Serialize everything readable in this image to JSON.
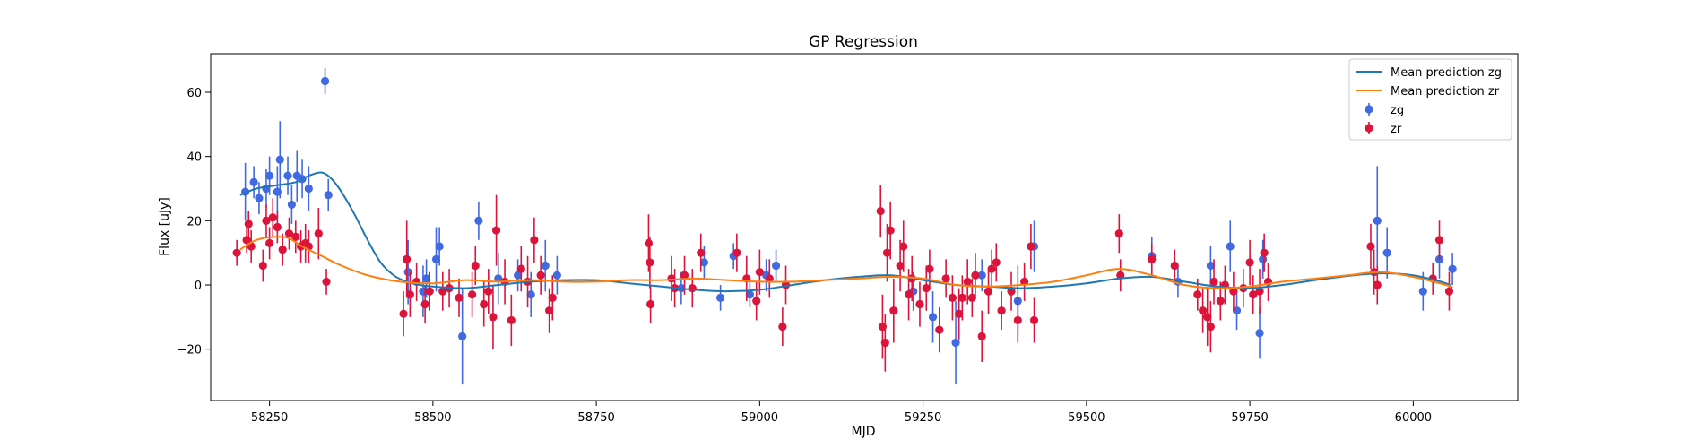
{
  "chart_data": {
    "type": "scatter",
    "title": "GP Regression",
    "xlabel": "MJD",
    "ylabel": "Flux [uJy]",
    "xlim": [
      58160,
      60160
    ],
    "ylim": [
      -36,
      72
    ],
    "xticks": [
      58250,
      58500,
      58750,
      59000,
      59250,
      59500,
      59750,
      60000
    ],
    "yticks": [
      -20,
      0,
      20,
      40,
      60
    ],
    "grid": false,
    "legend_position": "top-right",
    "colors": {
      "zg_line": "#1f77b4",
      "zr_line": "#ff7f0e",
      "zg_points": "#4169e1",
      "zr_points": "#dc143c"
    },
    "legend": [
      {
        "label": "Mean prediction zg",
        "kind": "line",
        "color": "#1f77b4"
      },
      {
        "label": "Mean prediction zr",
        "kind": "line",
        "color": "#ff7f0e"
      },
      {
        "label": "zg",
        "kind": "errorbar",
        "color": "#4169e1"
      },
      {
        "label": "zr",
        "kind": "errorbar",
        "color": "#dc143c"
      }
    ],
    "lines": [
      {
        "name": "Mean prediction zg",
        "color": "#1f77b4",
        "x": [
          58205,
          58230,
          58260,
          58290,
          58310,
          58330,
          58345,
          58360,
          58380,
          58400,
          58420,
          58440,
          58460,
          58480,
          58500,
          58550,
          58600,
          58650,
          58700,
          58750,
          58800,
          58850,
          58900,
          58950,
          59000,
          59050,
          59100,
          59150,
          59200,
          59250,
          59300,
          59350,
          59400,
          59450,
          59500,
          59550,
          59600,
          59650,
          59700,
          59750,
          59800,
          59850,
          59900,
          59950,
          60000,
          60050,
          60060
        ],
        "y": [
          28,
          30,
          31,
          32,
          34,
          35,
          33,
          29,
          22,
          14,
          7,
          3,
          1,
          0,
          -0.5,
          -1,
          0,
          1,
          1.5,
          1.5,
          0.5,
          -0.5,
          -1.5,
          -2,
          -1.5,
          0,
          1.5,
          2.5,
          3,
          1.5,
          0,
          -0.5,
          -1,
          -0.5,
          0.5,
          2,
          2.5,
          1,
          -0.5,
          -1,
          0,
          1.5,
          2.8,
          3.6,
          3,
          0.5,
          -1
        ]
      },
      {
        "name": "Mean prediction zr",
        "color": "#ff7f0e",
        "x": [
          58205,
          58230,
          58260,
          58280,
          58300,
          58330,
          58360,
          58400,
          58450,
          58500,
          58550,
          58600,
          58650,
          58700,
          58750,
          58800,
          58850,
          58900,
          58950,
          59000,
          59050,
          59100,
          59150,
          59200,
          59250,
          59300,
          59350,
          59400,
          59450,
          59500,
          59550,
          59600,
          59650,
          59700,
          59750,
          59800,
          59850,
          59900,
          59950,
          60000,
          60050,
          60060
        ],
        "y": [
          11,
          14,
          15,
          14.5,
          12,
          9,
          6,
          3,
          1,
          0.5,
          1.5,
          1,
          1.5,
          1,
          1,
          1.5,
          1.5,
          2,
          1.5,
          1,
          1,
          1.5,
          2,
          2.5,
          2,
          0,
          -0.5,
          0,
          1,
          3,
          5,
          3,
          0,
          -1,
          -0.5,
          1,
          2,
          3,
          4,
          2.5,
          0,
          -0.5
        ]
      }
    ],
    "series": [
      {
        "name": "zg",
        "color": "#4169e1",
        "points": [
          {
            "x": 58213,
            "y": 29,
            "err": 9
          },
          {
            "x": 58226,
            "y": 32,
            "err": 5
          },
          {
            "x": 58234,
            "y": 27,
            "err": 5
          },
          {
            "x": 58245,
            "y": 30,
            "err": 6
          },
          {
            "x": 58250,
            "y": 34,
            "err": 6
          },
          {
            "x": 58262,
            "y": 29,
            "err": 8
          },
          {
            "x": 58266,
            "y": 39,
            "err": 12
          },
          {
            "x": 58278,
            "y": 34,
            "err": 6
          },
          {
            "x": 58284,
            "y": 25,
            "err": 6
          },
          {
            "x": 58292,
            "y": 34,
            "err": 8
          },
          {
            "x": 58300,
            "y": 33,
            "err": 6
          },
          {
            "x": 58310,
            "y": 30,
            "err": 7
          },
          {
            "x": 58335,
            "y": 63.5,
            "err": 4
          },
          {
            "x": 58340,
            "y": 28,
            "err": 5
          },
          {
            "x": 58462,
            "y": 4,
            "err": 10
          },
          {
            "x": 58485,
            "y": -2,
            "err": 8
          },
          {
            "x": 58490,
            "y": 2,
            "err": 6
          },
          {
            "x": 58505,
            "y": 8,
            "err": 10
          },
          {
            "x": 58510,
            "y": 12,
            "err": 6
          },
          {
            "x": 58545,
            "y": -16,
            "err": 15
          },
          {
            "x": 58570,
            "y": 20,
            "err": 6
          },
          {
            "x": 58600,
            "y": 2,
            "err": 8
          },
          {
            "x": 58630,
            "y": 3,
            "err": 5
          },
          {
            "x": 58650,
            "y": -3,
            "err": 7
          },
          {
            "x": 58672,
            "y": 6,
            "err": 8
          },
          {
            "x": 58690,
            "y": 3,
            "err": 6
          },
          {
            "x": 58880,
            "y": -1,
            "err": 5
          },
          {
            "x": 58915,
            "y": 7,
            "err": 5
          },
          {
            "x": 58940,
            "y": -4,
            "err": 4
          },
          {
            "x": 58960,
            "y": 9,
            "err": 4
          },
          {
            "x": 58985,
            "y": -3,
            "err": 4
          },
          {
            "x": 59010,
            "y": 3,
            "err": 5
          },
          {
            "x": 59025,
            "y": 6,
            "err": 5
          },
          {
            "x": 59235,
            "y": -2,
            "err": 6
          },
          {
            "x": 59265,
            "y": -10,
            "err": 8
          },
          {
            "x": 59300,
            "y": -18,
            "err": 13
          },
          {
            "x": 59340,
            "y": 3,
            "err": 5
          },
          {
            "x": 59395,
            "y": -5,
            "err": 11
          },
          {
            "x": 59420,
            "y": 12,
            "err": 8
          },
          {
            "x": 59600,
            "y": 9,
            "err": 6
          },
          {
            "x": 59640,
            "y": 1,
            "err": 5
          },
          {
            "x": 59690,
            "y": 6,
            "err": 6
          },
          {
            "x": 59720,
            "y": 12,
            "err": 8
          },
          {
            "x": 59730,
            "y": -8,
            "err": 6
          },
          {
            "x": 59765,
            "y": -15,
            "err": 8
          },
          {
            "x": 59770,
            "y": 8,
            "err": 6
          },
          {
            "x": 59945,
            "y": 20,
            "err": 17
          },
          {
            "x": 59960,
            "y": 10,
            "err": 8
          },
          {
            "x": 60015,
            "y": -2,
            "err": 6
          },
          {
            "x": 60040,
            "y": 8,
            "err": 6
          },
          {
            "x": 60060,
            "y": 5,
            "err": 5
          }
        ]
      },
      {
        "name": "zr",
        "color": "#dc143c",
        "points": [
          {
            "x": 58200,
            "y": 10,
            "err": 4
          },
          {
            "x": 58215,
            "y": 14,
            "err": 4
          },
          {
            "x": 58218,
            "y": 19,
            "err": 4
          },
          {
            "x": 58222,
            "y": 12,
            "err": 5
          },
          {
            "x": 58240,
            "y": 6,
            "err": 5
          },
          {
            "x": 58245,
            "y": 20,
            "err": 5
          },
          {
            "x": 58250,
            "y": 13,
            "err": 5
          },
          {
            "x": 58255,
            "y": 21,
            "err": 6
          },
          {
            "x": 58262,
            "y": 18,
            "err": 5
          },
          {
            "x": 58270,
            "y": 11,
            "err": 5
          },
          {
            "x": 58280,
            "y": 16,
            "err": 5
          },
          {
            "x": 58290,
            "y": 15,
            "err": 5
          },
          {
            "x": 58298,
            "y": 12,
            "err": 5
          },
          {
            "x": 58305,
            "y": 13,
            "err": 6
          },
          {
            "x": 58310,
            "y": 12,
            "err": 5
          },
          {
            "x": 58325,
            "y": 16,
            "err": 8
          },
          {
            "x": 58337,
            "y": 1,
            "err": 4
          },
          {
            "x": 58455,
            "y": -9,
            "err": 7
          },
          {
            "x": 58460,
            "y": 8,
            "err": 12
          },
          {
            "x": 58465,
            "y": -3,
            "err": 7
          },
          {
            "x": 58475,
            "y": 1,
            "err": 6
          },
          {
            "x": 58488,
            "y": -6,
            "err": 6
          },
          {
            "x": 58495,
            "y": -2,
            "err": 6
          },
          {
            "x": 58515,
            "y": -2,
            "err": 6
          },
          {
            "x": 58525,
            "y": -1,
            "err": 6
          },
          {
            "x": 58540,
            "y": -4,
            "err": 6
          },
          {
            "x": 58560,
            "y": -3,
            "err": 7
          },
          {
            "x": 58565,
            "y": 6,
            "err": 6
          },
          {
            "x": 58578,
            "y": -6,
            "err": 7
          },
          {
            "x": 58585,
            "y": -2,
            "err": 7
          },
          {
            "x": 58592,
            "y": -10,
            "err": 10
          },
          {
            "x": 58597,
            "y": 17,
            "err": 11
          },
          {
            "x": 58610,
            "y": 1,
            "err": 7
          },
          {
            "x": 58620,
            "y": -11,
            "err": 8
          },
          {
            "x": 58635,
            "y": 5,
            "err": 7
          },
          {
            "x": 58645,
            "y": 1,
            "err": 8
          },
          {
            "x": 58655,
            "y": 14,
            "err": 7
          },
          {
            "x": 58665,
            "y": 3,
            "err": 6
          },
          {
            "x": 58678,
            "y": -8,
            "err": 7
          },
          {
            "x": 58683,
            "y": -4,
            "err": 7
          },
          {
            "x": 58830,
            "y": 13,
            "err": 9
          },
          {
            "x": 58832,
            "y": 7,
            "err": 8
          },
          {
            "x": 58833,
            "y": -6,
            "err": 6
          },
          {
            "x": 58865,
            "y": 2,
            "err": 7
          },
          {
            "x": 58870,
            "y": -1,
            "err": 6
          },
          {
            "x": 58885,
            "y": 3,
            "err": 6
          },
          {
            "x": 58897,
            "y": -1,
            "err": 6
          },
          {
            "x": 58910,
            "y": 10,
            "err": 6
          },
          {
            "x": 58965,
            "y": 10,
            "err": 6
          },
          {
            "x": 58980,
            "y": 2,
            "err": 7
          },
          {
            "x": 58995,
            "y": -5,
            "err": 6
          },
          {
            "x": 59000,
            "y": 4,
            "err": 7
          },
          {
            "x": 59015,
            "y": 2,
            "err": 6
          },
          {
            "x": 59035,
            "y": -13,
            "err": 6
          },
          {
            "x": 59040,
            "y": 0,
            "err": 6
          },
          {
            "x": 59185,
            "y": 23,
            "err": 8
          },
          {
            "x": 59188,
            "y": -13,
            "err": 10
          },
          {
            "x": 59192,
            "y": -18,
            "err": 9
          },
          {
            "x": 59195,
            "y": 10,
            "err": 9
          },
          {
            "x": 59200,
            "y": 17,
            "err": 9
          },
          {
            "x": 59205,
            "y": -8,
            "err": 10
          },
          {
            "x": 59215,
            "y": 6,
            "err": 8
          },
          {
            "x": 59220,
            "y": 12,
            "err": 8
          },
          {
            "x": 59228,
            "y": -3,
            "err": 8
          },
          {
            "x": 59233,
            "y": 2,
            "err": 7
          },
          {
            "x": 59245,
            "y": -6,
            "err": 7
          },
          {
            "x": 59255,
            "y": -1,
            "err": 7
          },
          {
            "x": 59260,
            "y": 5,
            "err": 6
          },
          {
            "x": 59275,
            "y": -14,
            "err": 7
          },
          {
            "x": 59285,
            "y": 2,
            "err": 6
          },
          {
            "x": 59295,
            "y": -4,
            "err": 7
          },
          {
            "x": 59305,
            "y": -9,
            "err": 8
          },
          {
            "x": 59310,
            "y": -4,
            "err": 7
          },
          {
            "x": 59318,
            "y": 1,
            "err": 7
          },
          {
            "x": 59325,
            "y": -4,
            "err": 6
          },
          {
            "x": 59330,
            "y": 3,
            "err": 7
          },
          {
            "x": 59340,
            "y": -16,
            "err": 8
          },
          {
            "x": 59350,
            "y": -2,
            "err": 7
          },
          {
            "x": 59355,
            "y": 5,
            "err": 6
          },
          {
            "x": 59362,
            "y": 7,
            "err": 6
          },
          {
            "x": 59370,
            "y": -8,
            "err": 6
          },
          {
            "x": 59385,
            "y": -2,
            "err": 6
          },
          {
            "x": 59395,
            "y": -11,
            "err": 7
          },
          {
            "x": 59405,
            "y": 1,
            "err": 6
          },
          {
            "x": 59415,
            "y": 12,
            "err": 7
          },
          {
            "x": 59420,
            "y": -11,
            "err": 7
          },
          {
            "x": 59550,
            "y": 16,
            "err": 6
          },
          {
            "x": 59552,
            "y": 3,
            "err": 5
          },
          {
            "x": 59600,
            "y": 8,
            "err": 5
          },
          {
            "x": 59635,
            "y": 6,
            "err": 5
          },
          {
            "x": 59670,
            "y": -3,
            "err": 5
          },
          {
            "x": 59678,
            "y": -8,
            "err": 7
          },
          {
            "x": 59685,
            "y": -10,
            "err": 9
          },
          {
            "x": 59690,
            "y": -13,
            "err": 8
          },
          {
            "x": 59695,
            "y": 1,
            "err": 7
          },
          {
            "x": 59705,
            "y": -5,
            "err": 6
          },
          {
            "x": 59712,
            "y": 0,
            "err": 6
          },
          {
            "x": 59725,
            "y": -2,
            "err": 6
          },
          {
            "x": 59740,
            "y": -1,
            "err": 6
          },
          {
            "x": 59750,
            "y": 7,
            "err": 7
          },
          {
            "x": 59755,
            "y": -3,
            "err": 6
          },
          {
            "x": 59765,
            "y": -2,
            "err": 7
          },
          {
            "x": 59772,
            "y": 10,
            "err": 6
          },
          {
            "x": 59778,
            "y": 1,
            "err": 6
          },
          {
            "x": 59935,
            "y": 12,
            "err": 7
          },
          {
            "x": 59940,
            "y": 4,
            "err": 7
          },
          {
            "x": 59945,
            "y": 0,
            "err": 6
          },
          {
            "x": 60030,
            "y": 2,
            "err": 5
          },
          {
            "x": 60040,
            "y": 14,
            "err": 6
          },
          {
            "x": 60055,
            "y": -2,
            "err": 6
          }
        ]
      }
    ]
  }
}
